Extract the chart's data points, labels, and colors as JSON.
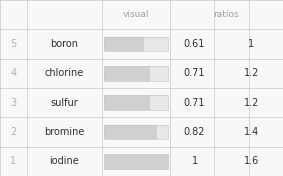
{
  "rows": [
    {
      "rank": "5",
      "element": "boron",
      "visual": 0.61,
      "ratio": "1"
    },
    {
      "rank": "4",
      "element": "chlorine",
      "visual": 0.71,
      "ratio": "1.2"
    },
    {
      "rank": "3",
      "element": "sulfur",
      "visual": 0.71,
      "ratio": "1.2"
    },
    {
      "rank": "2",
      "element": "bromine",
      "visual": 0.82,
      "ratio": "1.4"
    },
    {
      "rank": "1",
      "element": "iodine",
      "visual": 1.0,
      "ratio": "1.6"
    }
  ],
  "col_headers": [
    "",
    "",
    "visual",
    "ratios",
    ""
  ],
  "bar_color_left": "#d0d0d0",
  "bar_color_right": "#e8e8e8",
  "grid_color": "#c8c8c8",
  "text_color_rank": "#b0b0b0",
  "text_color_element": "#303030",
  "text_color_data": "#303030",
  "header_color": "#a0a0a0",
  "bg_color": "#f8f8f8",
  "font_family": "DejaVu Sans",
  "font_size_header": 6.5,
  "font_size_data": 7.0,
  "font_size_rank": 7.0,
  "vlines_x": [
    0.0,
    0.095,
    0.36,
    0.6,
    0.755,
    0.88,
    1.0
  ],
  "hlines_count": 7
}
